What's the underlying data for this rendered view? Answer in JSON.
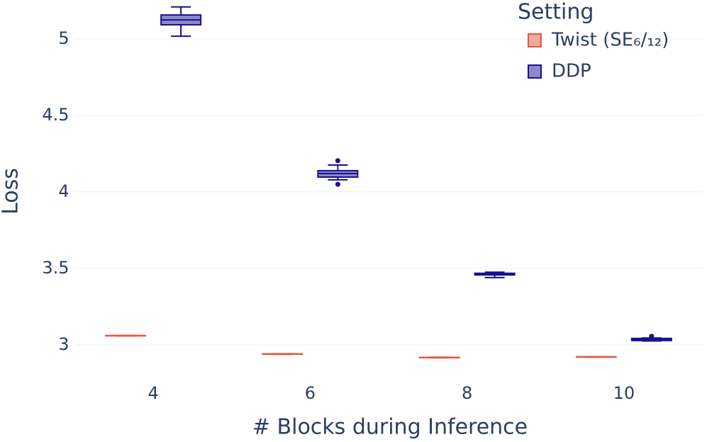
{
  "chart_data": {
    "type": "box",
    "x_label": "# Blocks during Inference",
    "y_label": "Loss",
    "categories": [
      4,
      6,
      8,
      10
    ],
    "ylim": [
      2.8,
      5.255
    ],
    "yticks": [
      3,
      3.5,
      4,
      4.5,
      5
    ],
    "grid": true,
    "legend_title": "Setting",
    "legend_position": "top-right",
    "series": [
      {
        "name": "Twist (SE₆/₁₂)",
        "color": "#e05a3f",
        "fill": "#f0a898",
        "boxes": [
          {
            "min": 3.058,
            "q1": 3.059,
            "median": 3.06,
            "q3": 3.061,
            "max": 3.062,
            "outliers": []
          },
          {
            "min": 2.938,
            "q1": 2.939,
            "median": 2.94,
            "q3": 2.941,
            "max": 2.942,
            "outliers": []
          },
          {
            "min": 2.915,
            "q1": 2.916,
            "median": 2.917,
            "q3": 2.918,
            "max": 2.919,
            "outliers": []
          },
          {
            "min": 2.919,
            "q1": 2.92,
            "median": 2.921,
            "q3": 2.922,
            "max": 2.923,
            "outliers": []
          }
        ]
      },
      {
        "name": "DDP",
        "color": "#1a0f8f",
        "fill": "#8c88c8",
        "boxes": [
          {
            "min": 5.018,
            "q1": 5.093,
            "median": 5.125,
            "q3": 5.157,
            "max": 5.21,
            "outliers": []
          },
          {
            "min": 4.079,
            "q1": 4.097,
            "median": 4.12,
            "q3": 4.139,
            "max": 4.176,
            "outliers": [
              4.204,
              4.05
            ]
          },
          {
            "min": 3.44,
            "q1": 3.457,
            "median": 3.463,
            "q3": 3.468,
            "max": 3.475,
            "outliers": []
          },
          {
            "min": 3.025,
            "q1": 3.028,
            "median": 3.035,
            "q3": 3.042,
            "max": 3.045,
            "outliers": [
              3.056
            ]
          }
        ]
      }
    ]
  }
}
